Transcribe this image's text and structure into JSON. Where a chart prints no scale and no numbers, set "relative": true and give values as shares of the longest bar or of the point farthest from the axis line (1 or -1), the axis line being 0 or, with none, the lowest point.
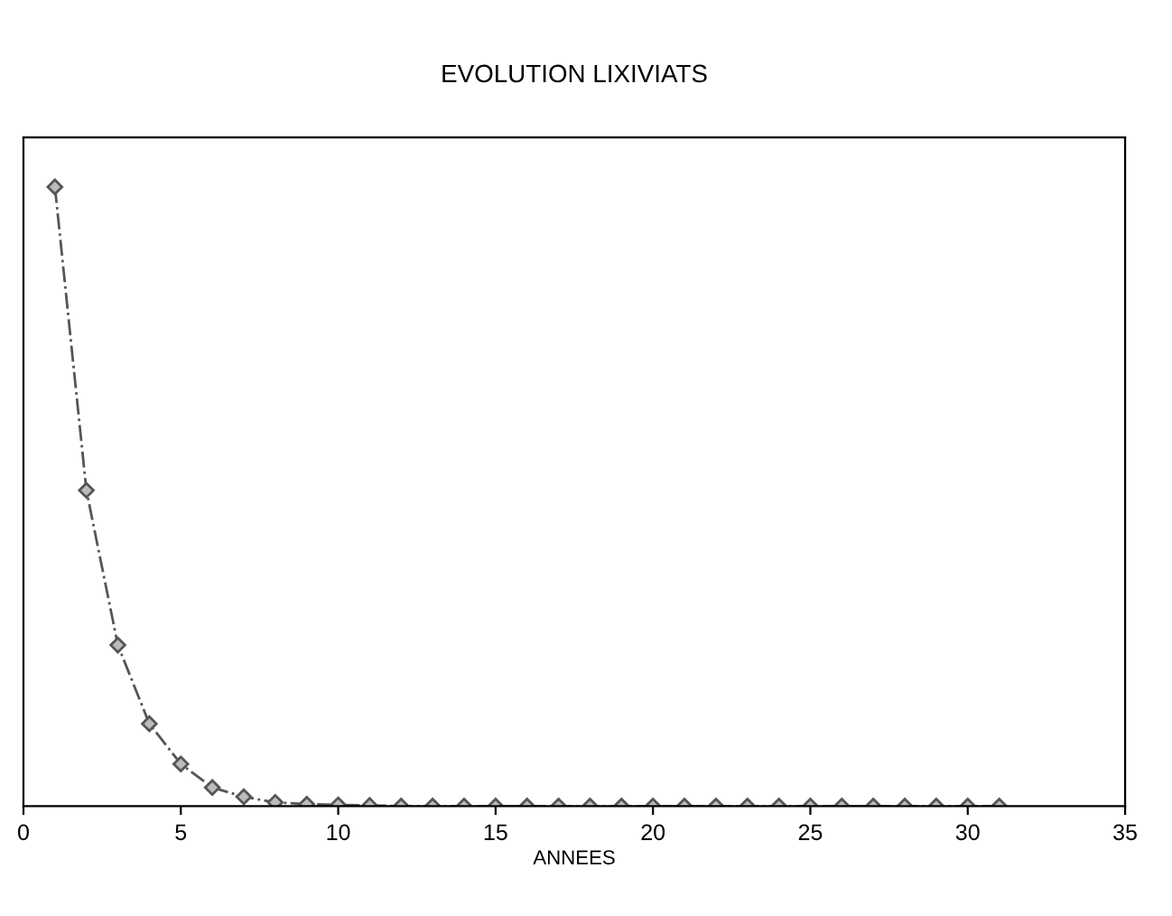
{
  "chart_data": {
    "type": "line",
    "title": "EVOLUTION LIXIVIATS",
    "xlabel": "ANNEES",
    "relative": true,
    "x": [
      1,
      2,
      3,
      4,
      5,
      6,
      7,
      8,
      9,
      10,
      11,
      12,
      13,
      14,
      15,
      16,
      17,
      18,
      19,
      20,
      21,
      22,
      23,
      24,
      25,
      26,
      27,
      28,
      29,
      30,
      31
    ],
    "values": [
      1,
      0.51,
      0.26,
      0.133,
      0.068,
      0.03,
      0.015,
      0.006,
      0.003,
      0.002,
      0.001,
      0,
      0,
      0,
      0,
      0,
      0,
      0,
      0,
      0,
      0,
      0,
      0,
      0,
      0,
      0,
      0,
      0,
      0,
      0,
      0
    ],
    "color": "#555555",
    "marker": "diamond",
    "line_style": "dashed",
    "xlim": [
      0,
      35
    ],
    "xticks": [
      0,
      5,
      10,
      15,
      20,
      25,
      30,
      35
    ],
    "grid": false,
    "legend": false
  }
}
